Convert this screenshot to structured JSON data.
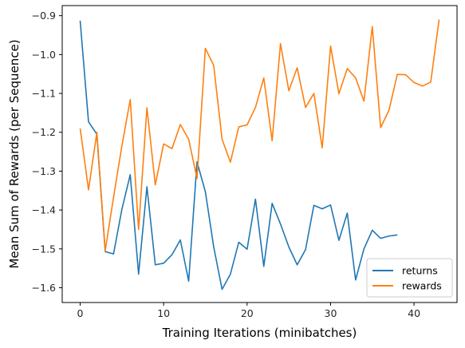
{
  "chart_data": {
    "type": "line",
    "title": "",
    "xlabel": "Training Iterations (minibatches)",
    "ylabel": "Mean Sum of Rewards (per Sequence)",
    "xlim": [
      -2.15,
      45.15
    ],
    "ylim": [
      -1.638,
      -0.874
    ],
    "xticks": [
      0,
      10,
      20,
      30,
      40
    ],
    "yticks": [
      -1.6,
      -1.5,
      -1.4,
      -1.3,
      -1.2,
      -1.1,
      -1.0,
      -0.9
    ],
    "xtick_labels": [
      "0",
      "10",
      "20",
      "30",
      "40"
    ],
    "ytick_labels": [
      "−1.6",
      "−1.5",
      "−1.4",
      "−1.3",
      "−1.2",
      "−1.1",
      "−1.0",
      "−0.9"
    ],
    "grid": false,
    "legend_position": "lower-right",
    "series": [
      {
        "name": "returns",
        "color": "#1f77b4",
        "x": [
          0,
          1,
          2,
          3,
          4,
          5,
          6,
          7,
          8,
          9,
          10,
          11,
          12,
          13,
          14,
          15,
          16,
          17,
          18,
          19,
          20,
          21,
          22,
          23,
          24,
          25,
          26,
          27,
          28,
          29,
          30,
          31,
          32,
          33,
          34,
          35,
          36,
          37,
          38
        ],
        "values": [
          -0.913,
          -1.173,
          -1.205,
          -1.507,
          -1.513,
          -1.398,
          -1.309,
          -1.565,
          -1.34,
          -1.541,
          -1.537,
          -1.515,
          -1.477,
          -1.583,
          -1.276,
          -1.353,
          -1.495,
          -1.604,
          -1.565,
          -1.483,
          -1.501,
          -1.372,
          -1.545,
          -1.383,
          -1.436,
          -1.495,
          -1.541,
          -1.502,
          -1.388,
          -1.397,
          -1.387,
          -1.478,
          -1.408,
          -1.58,
          -1.5,
          -1.452,
          -1.473,
          -1.467,
          -1.464
        ]
      },
      {
        "name": "rewards",
        "color": "#ff7f0e",
        "x": [
          0,
          1,
          2,
          3,
          4,
          5,
          6,
          7,
          8,
          9,
          10,
          11,
          12,
          13,
          14,
          15,
          16,
          17,
          18,
          19,
          20,
          21,
          22,
          23,
          24,
          25,
          26,
          27,
          28,
          29,
          30,
          31,
          32,
          33,
          34,
          35,
          36,
          37,
          38,
          39,
          40,
          41,
          42,
          43
        ],
        "values": [
          -1.19,
          -1.348,
          -1.2,
          -1.505,
          -1.367,
          -1.235,
          -1.116,
          -1.45,
          -1.137,
          -1.335,
          -1.23,
          -1.242,
          -1.18,
          -1.218,
          -1.319,
          -0.984,
          -1.028,
          -1.218,
          -1.277,
          -1.186,
          -1.181,
          -1.136,
          -1.06,
          -1.222,
          -0.972,
          -1.093,
          -1.034,
          -1.136,
          -1.1,
          -1.24,
          -0.978,
          -1.101,
          -1.036,
          -1.06,
          -1.12,
          -0.928,
          -1.188,
          -1.143,
          -1.051,
          -1.052,
          -1.072,
          -1.081,
          -1.071,
          -0.91
        ]
      }
    ]
  }
}
